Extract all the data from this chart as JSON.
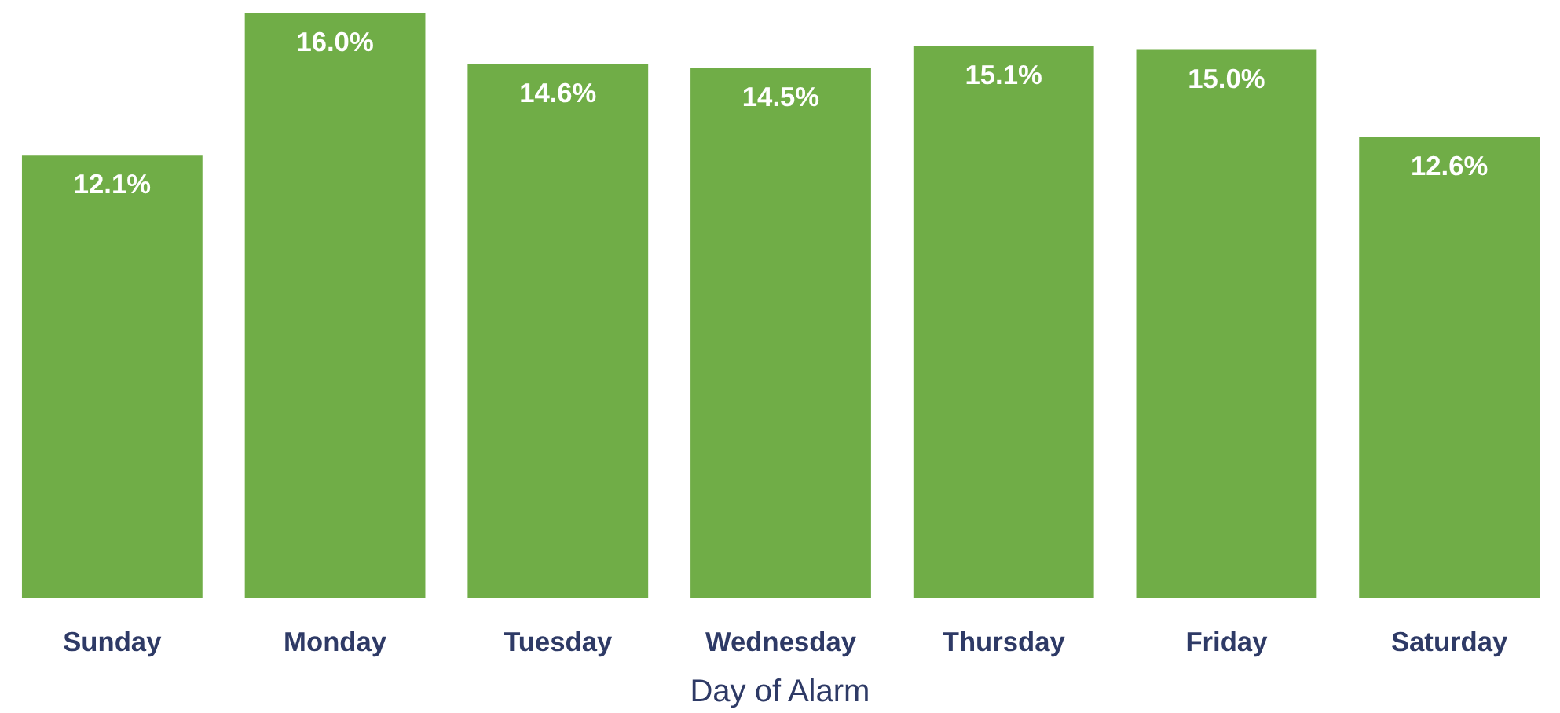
{
  "chart_data": {
    "type": "bar",
    "xlabel": "Day of Alarm",
    "categories": [
      "Sunday",
      "Monday",
      "Tuesday",
      "Wednesday",
      "Thursday",
      "Friday",
      "Saturday"
    ],
    "values": [
      12.1,
      16.0,
      14.6,
      14.5,
      15.1,
      15.0,
      12.6
    ],
    "value_labels": [
      "12.1%",
      "16.0%",
      "14.6%",
      "14.5%",
      "15.1%",
      "15.0%",
      "12.6%"
    ],
    "color": "#70ad47",
    "grid": false
  }
}
